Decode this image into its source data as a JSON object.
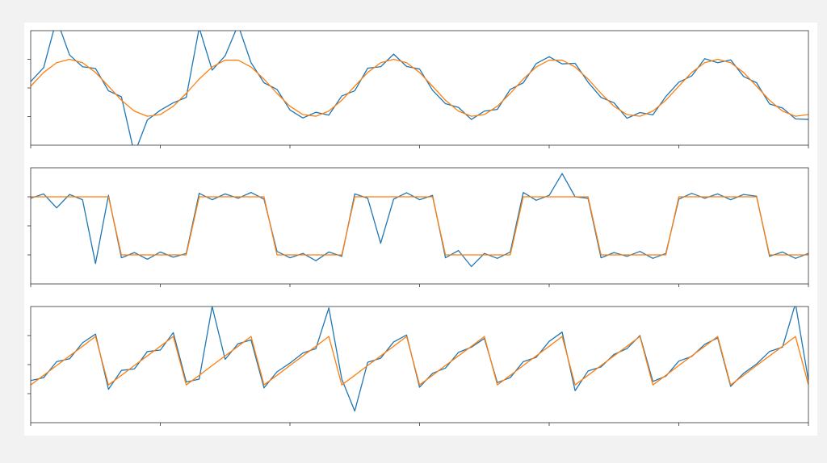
{
  "chart_data": [
    {
      "type": "line",
      "xlim": [
        0,
        600
      ],
      "ylim": [
        -2,
        2
      ],
      "xticks": [
        0,
        100,
        200,
        300,
        400,
        500,
        600
      ],
      "yticks": [
        -1,
        0,
        1
      ],
      "x": [
        0,
        10,
        20,
        30,
        40,
        50,
        60,
        70,
        80,
        90,
        100,
        110,
        120,
        130,
        140,
        150,
        160,
        170,
        180,
        190,
        200,
        210,
        220,
        230,
        240,
        250,
        260,
        270,
        280,
        290,
        300,
        310,
        320,
        330,
        340,
        350,
        360,
        370,
        380,
        390,
        400,
        410,
        420,
        430,
        440,
        450,
        460,
        470,
        480,
        490,
        500,
        510,
        520,
        530,
        540,
        550,
        560,
        570,
        580,
        590,
        600
      ],
      "series": [
        {
          "color": "#1f77b4",
          "values": [
            0.22,
            0.71,
            2.4,
            1.15,
            0.74,
            0.68,
            -0.1,
            -0.31,
            -2.3,
            -1.12,
            -0.78,
            -0.52,
            -0.33,
            2.1,
            0.62,
            1.12,
            2.2,
            0.88,
            0.18,
            -0.05,
            -0.77,
            -1.05,
            -0.85,
            -0.95,
            -0.28,
            -0.1,
            0.69,
            0.74,
            1.18,
            0.75,
            0.66,
            -0.08,
            -0.55,
            -0.68,
            -1.1,
            -0.81,
            -0.75,
            -0.05,
            0.18,
            0.85,
            1.09,
            0.84,
            0.86,
            0.2,
            -0.33,
            -0.52,
            -1.06,
            -0.86,
            -0.94,
            -0.3,
            0.2,
            0.42,
            1.02,
            0.88,
            0.98,
            0.4,
            0.18,
            -0.56,
            -0.7,
            -1.08,
            -1.1
          ]
        },
        {
          "color": "#ff7f0e",
          "values": [
            0.06,
            0.54,
            0.88,
            1,
            0.88,
            0.54,
            0.06,
            -0.43,
            -0.81,
            -0.99,
            -0.93,
            -0.64,
            -0.19,
            0.31,
            0.73,
            0.97,
            0.97,
            0.73,
            0.31,
            -0.19,
            -0.64,
            -0.93,
            -0.99,
            -0.81,
            -0.43,
            0.06,
            0.54,
            0.88,
            1,
            0.88,
            0.54,
            0.06,
            -0.43,
            -0.81,
            -0.99,
            -0.93,
            -0.64,
            -0.19,
            0.31,
            0.73,
            0.97,
            0.97,
            0.73,
            0.31,
            -0.19,
            -0.64,
            -0.93,
            -0.99,
            -0.81,
            -0.43,
            0.06,
            0.54,
            0.88,
            1,
            0.88,
            0.54,
            0.06,
            -0.43,
            -0.81,
            -0.99,
            -0.93
          ]
        }
      ]
    },
    {
      "type": "line",
      "xlim": [
        0,
        600
      ],
      "ylim": [
        -2,
        2
      ],
      "xticks": [
        0,
        100,
        200,
        300,
        400,
        500,
        600
      ],
      "yticks": [
        -1,
        0,
        1
      ],
      "x": [
        0,
        10,
        20,
        30,
        40,
        50,
        60,
        70,
        80,
        90,
        100,
        110,
        120,
        130,
        140,
        150,
        160,
        170,
        180,
        190,
        200,
        210,
        220,
        230,
        240,
        250,
        260,
        270,
        280,
        290,
        300,
        310,
        320,
        330,
        340,
        350,
        360,
        370,
        380,
        390,
        400,
        410,
        420,
        430,
        440,
        450,
        460,
        470,
        480,
        490,
        500,
        510,
        520,
        530,
        540,
        550,
        560,
        570,
        580,
        590,
        600
      ],
      "series": [
        {
          "color": "#1f77b4",
          "values": [
            0.95,
            1.1,
            0.62,
            1.08,
            0.9,
            -1.3,
            1.05,
            -1.1,
            -0.92,
            -1.15,
            -0.9,
            -1.08,
            -0.95,
            1.12,
            0.9,
            1.1,
            0.95,
            1.15,
            0.92,
            -0.88,
            -1.1,
            -0.95,
            -1.2,
            -0.9,
            -1.05,
            1.1,
            0.95,
            -0.6,
            0.92,
            1.14,
            0.9,
            1.05,
            -1.1,
            -0.85,
            -1.4,
            -0.95,
            -1.12,
            -0.9,
            1.15,
            0.88,
            1.05,
            1.8,
            1.0,
            0.95,
            -1.1,
            -0.92,
            -1.05,
            -0.88,
            -1.12,
            -0.95,
            0.92,
            1.12,
            0.95,
            1.1,
            0.9,
            1.08,
            1.02,
            -1.05,
            -0.9,
            -1.12,
            -0.95
          ]
        },
        {
          "color": "#ff7f0e",
          "values": [
            1,
            1,
            1,
            1,
            1,
            1,
            1,
            -1,
            -1,
            -1,
            -1,
            -1,
            -1,
            1,
            1,
            1,
            1,
            1,
            1,
            -1,
            -1,
            -1,
            -1,
            -1,
            -1,
            1,
            1,
            1,
            1,
            1,
            1,
            1,
            -1,
            -1,
            -1,
            -1,
            -1,
            -1,
            1,
            1,
            1,
            1,
            1,
            1,
            -1,
            -1,
            -1,
            -1,
            -1,
            -1,
            1,
            1,
            1,
            1,
            1,
            1,
            1,
            -1,
            -1,
            -1,
            -1
          ]
        }
      ]
    },
    {
      "type": "line",
      "xlim": [
        0,
        600
      ],
      "ylim": [
        -2,
        2
      ],
      "xticks": [
        0,
        100,
        200,
        300,
        400,
        500,
        600
      ],
      "yticks": [
        -1,
        0,
        1
      ],
      "x": [
        0,
        10,
        20,
        30,
        40,
        50,
        60,
        70,
        80,
        90,
        100,
        110,
        120,
        130,
        140,
        150,
        160,
        170,
        180,
        190,
        200,
        210,
        220,
        230,
        240,
        250,
        260,
        270,
        280,
        290,
        300,
        310,
        320,
        330,
        340,
        350,
        360,
        370,
        380,
        390,
        400,
        410,
        420,
        430,
        440,
        450,
        460,
        470,
        480,
        490,
        500,
        510,
        520,
        530,
        540,
        550,
        560,
        570,
        580,
        590,
        600
      ],
      "series": [
        {
          "color": "#1f77b4",
          "values": [
            -0.55,
            -0.45,
            0.1,
            0.2,
            0.75,
            1.05,
            -0.85,
            -0.2,
            -0.15,
            0.45,
            0.5,
            1.1,
            -0.6,
            -0.5,
            2.0,
            0.18,
            0.72,
            0.85,
            -0.8,
            -0.25,
            0.05,
            0.4,
            0.55,
            1.95,
            -0.5,
            -1.6,
            0.08,
            0.22,
            0.78,
            1.02,
            -0.78,
            -0.3,
            -0.12,
            0.42,
            0.6,
            0.9,
            -0.62,
            -0.45,
            0.1,
            0.25,
            0.8,
            1.12,
            -0.9,
            -0.22,
            -0.08,
            0.35,
            0.55,
            1.0,
            -0.58,
            -0.4,
            0.12,
            0.28,
            0.7,
            0.92,
            -0.75,
            -0.3,
            0.02,
            0.45,
            0.6,
            2.1,
            -0.55
          ]
        },
        {
          "color": "#ff7f0e",
          "values": [
            -0.7,
            -0.37,
            -0.03,
            0.3,
            0.63,
            0.97,
            -0.7,
            -0.37,
            -0.03,
            0.3,
            0.63,
            0.97,
            -0.7,
            -0.37,
            -0.03,
            0.3,
            0.63,
            0.97,
            -0.7,
            -0.37,
            -0.03,
            0.3,
            0.63,
            0.97,
            -0.7,
            -0.37,
            -0.03,
            0.3,
            0.63,
            0.97,
            -0.7,
            -0.37,
            -0.03,
            0.3,
            0.63,
            0.97,
            -0.7,
            -0.37,
            -0.03,
            0.3,
            0.63,
            0.97,
            -0.7,
            -0.37,
            -0.03,
            0.3,
            0.63,
            0.97,
            -0.7,
            -0.37,
            -0.03,
            0.3,
            0.63,
            0.97,
            -0.7,
            -0.37,
            -0.03,
            0.3,
            0.63,
            0.97,
            -0.7
          ]
        }
      ]
    }
  ]
}
